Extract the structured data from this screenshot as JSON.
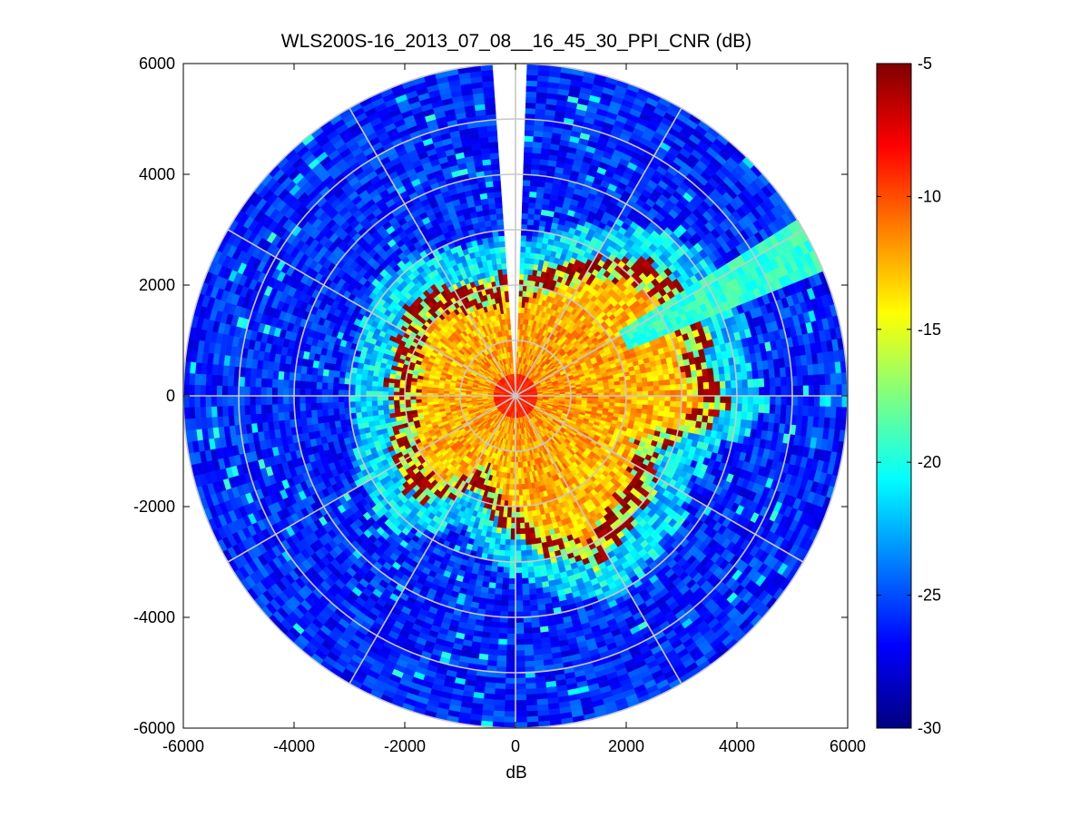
{
  "chart_data": {
    "type": "heatmap",
    "subtype": "polar-ppi",
    "title": "WLS200S-16_2013_07_08__16_45_30_PPI_CNR (dB)",
    "xlabel": "dB",
    "ylabel": "",
    "xlim": [
      -6000,
      6000
    ],
    "ylim": [
      -6000,
      6000
    ],
    "xticks": [
      "-6000",
      "-4000",
      "-2000",
      "0",
      "2000",
      "4000",
      "6000"
    ],
    "yticks": [
      "6000",
      "4000",
      "2000",
      "0",
      "-2000",
      "-4000",
      "-6000"
    ],
    "range_rings_m": [
      1000,
      2000,
      3000,
      4000,
      5000,
      6000
    ],
    "spoke_angles_deg": [
      0,
      30,
      60,
      90,
      120,
      150,
      180,
      210,
      240,
      270,
      300,
      330
    ],
    "max_range_m": 6000,
    "grid": true,
    "colorbar": {
      "colormap": "jet",
      "clim": [
        -30,
        -5
      ],
      "ticks": [
        "-5",
        "-10",
        "-15",
        "-20",
        "-25",
        "-30"
      ]
    },
    "data_summary": {
      "background_far_field_dB": -26,
      "near_field_core_dB": -12,
      "hard_target_echo_dB": -5,
      "blocked_sector_az_deg": [
        357,
        2
      ]
    },
    "colors": {
      "grid": "#c8c8c8",
      "axes": "#000000",
      "background": "#ffffff"
    }
  }
}
